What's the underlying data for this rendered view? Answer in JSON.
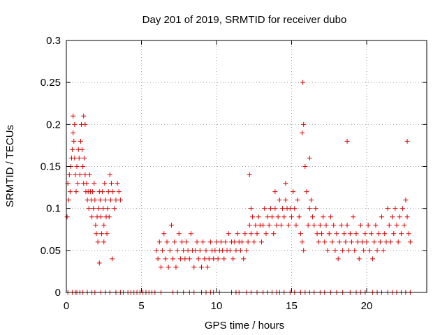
{
  "chart_data": {
    "type": "scatter",
    "title": "Day 201 of 2019, SRMTID for receiver dubo",
    "xlabel": "GPS time / hours",
    "ylabel": "SRMTID / TECUs",
    "xlim": [
      0,
      24
    ],
    "ylim": [
      0,
      0.3
    ],
    "grid": true,
    "x_ticks": [
      0,
      5,
      10,
      15,
      20
    ],
    "x_tick_labels": [
      "0",
      "5",
      "10",
      "15",
      "20"
    ],
    "y_ticks": [
      0,
      0.05,
      0.1,
      0.15,
      0.2,
      0.25,
      0.3
    ],
    "y_tick_labels": [
      "0",
      "0.05",
      "0.1",
      "0.15",
      "0.2",
      "0.25",
      "0.3"
    ],
    "marker": "+",
    "color": "#e00000",
    "series": [
      {
        "name": "SRMTID",
        "description": "approximate scatter of the plotted values, sampled from the figure",
        "x": [
          0.05,
          0.1,
          0.15,
          0.2,
          0.25,
          0.3,
          0.35,
          0.4,
          0.45,
          0.5,
          0.55,
          0.6,
          0.65,
          0.7,
          0.75,
          0.8,
          0.85,
          0.9,
          0.95,
          1.0,
          1.05,
          1.1,
          1.15,
          1.2,
          1.25,
          1.3,
          1.35,
          1.4,
          1.45,
          1.5,
          1.55,
          1.6,
          1.65,
          1.7,
          1.75,
          1.8,
          1.85,
          1.9,
          1.95,
          2.0,
          2.05,
          2.1,
          2.15,
          2.2,
          2.25,
          2.3,
          2.35,
          2.4,
          2.45,
          2.5,
          2.55,
          2.6,
          2.65,
          2.7,
          2.75,
          2.8,
          2.85,
          2.9,
          2.95,
          3.0,
          3.1,
          3.2,
          3.3,
          3.4,
          3.5,
          3.6,
          0.45,
          0.55,
          1.15,
          1.25,
          2.5,
          3.05,
          2.2,
          6.0,
          6.1,
          6.2,
          6.3,
          6.4,
          6.5,
          6.6,
          6.7,
          6.8,
          6.9,
          7.0,
          7.1,
          7.2,
          7.3,
          7.4,
          7.5,
          7.6,
          7.7,
          7.8,
          7.9,
          8.0,
          8.1,
          8.2,
          8.3,
          8.4,
          8.5,
          8.6,
          8.7,
          8.8,
          8.9,
          9.0,
          9.1,
          9.2,
          9.3,
          9.4,
          9.5,
          9.6,
          9.7,
          9.8,
          9.9,
          10.0,
          10.1,
          10.2,
          10.3,
          10.4,
          10.5,
          10.6,
          10.7,
          10.8,
          10.9,
          11.0,
          11.1,
          11.2,
          11.3,
          11.4,
          11.5,
          11.6,
          11.7,
          11.8,
          11.9,
          12.0,
          12.1,
          12.2,
          12.3,
          12.4,
          12.5,
          12.6,
          12.7,
          12.8,
          12.9,
          13.0,
          13.1,
          13.2,
          13.3,
          13.4,
          13.5,
          13.6,
          13.7,
          13.8,
          13.9,
          14.0,
          14.1,
          14.2,
          14.3,
          14.4,
          14.5,
          14.6,
          14.7,
          14.8,
          14.9,
          15.0,
          15.1,
          15.2,
          15.3,
          15.4,
          15.5,
          15.6,
          15.7,
          15.8,
          15.9,
          16.0,
          16.1,
          16.2,
          16.3,
          16.4,
          16.5,
          16.6,
          16.7,
          16.8,
          16.9,
          17.0,
          17.1,
          17.2,
          17.3,
          17.4,
          17.5,
          17.6,
          17.7,
          17.8,
          17.9,
          18.0,
          18.1,
          18.2,
          18.3,
          18.4,
          18.5,
          18.6,
          18.7,
          18.8,
          18.9,
          19.0,
          19.1,
          19.2,
          19.3,
          19.4,
          19.5,
          19.6,
          19.7,
          19.8,
          19.9,
          20.0,
          20.1,
          20.2,
          20.3,
          20.4,
          20.5,
          20.6,
          20.7,
          20.8,
          20.9,
          21.0,
          21.1,
          21.2,
          21.3,
          21.4,
          21.5,
          21.6,
          21.7,
          21.8,
          21.9,
          22.0,
          22.1,
          22.2,
          22.3,
          22.4,
          22.5,
          22.6,
          22.7,
          22.8,
          22.9,
          15.75,
          15.7,
          15.8,
          16.2,
          18.7,
          22.7,
          14.6,
          13.9,
          12.2,
          12.3
        ],
        "y": [
          0.09,
          0.13,
          0.11,
          0.14,
          0.12,
          0.15,
          0.16,
          0.17,
          0.19,
          0.18,
          0.16,
          0.14,
          0.12,
          0.15,
          0.13,
          0.17,
          0.16,
          0.14,
          0.18,
          0.2,
          0.17,
          0.15,
          0.13,
          0.16,
          0.14,
          0.12,
          0.13,
          0.11,
          0.12,
          0.1,
          0.14,
          0.12,
          0.11,
          0.09,
          0.12,
          0.1,
          0.13,
          0.11,
          0.08,
          0.07,
          0.09,
          0.06,
          0.1,
          0.12,
          0.11,
          0.09,
          0.07,
          0.12,
          0.1,
          0.08,
          0.13,
          0.11,
          0.09,
          0.07,
          0.1,
          0.12,
          0.09,
          0.14,
          0.11,
          0.13,
          0.12,
          0.1,
          0.11,
          0.13,
          0.12,
          0.11,
          0.21,
          0.2,
          0.21,
          0.2,
          0.06,
          0.04,
          0.035,
          0.05,
          0.04,
          0.06,
          0.03,
          0.05,
          0.07,
          0.04,
          0.06,
          0.03,
          0.05,
          0.08,
          0.04,
          0.06,
          0.03,
          0.05,
          0.07,
          0.04,
          0.06,
          0.05,
          0.04,
          0.06,
          0.05,
          0.04,
          0.07,
          0.05,
          0.03,
          0.05,
          0.06,
          0.04,
          0.05,
          0.03,
          0.06,
          0.04,
          0.05,
          0.03,
          0.04,
          0.06,
          0.05,
          0.04,
          0.05,
          0.06,
          0.04,
          0.05,
          0.06,
          0.05,
          0.04,
          0.06,
          0.05,
          0.07,
          0.05,
          0.06,
          0.04,
          0.06,
          0.05,
          0.07,
          0.06,
          0.05,
          0.06,
          0.04,
          0.07,
          0.05,
          0.06,
          0.08,
          0.07,
          0.09,
          0.06,
          0.08,
          0.07,
          0.09,
          0.08,
          0.06,
          0.08,
          0.1,
          0.07,
          0.09,
          0.08,
          0.1,
          0.09,
          0.07,
          0.1,
          0.08,
          0.09,
          0.11,
          0.08,
          0.1,
          0.09,
          0.11,
          0.1,
          0.08,
          0.1,
          0.09,
          0.12,
          0.1,
          0.08,
          0.11,
          0.09,
          0.07,
          0.06,
          0.05,
          0.15,
          0.12,
          0.08,
          0.1,
          0.11,
          0.09,
          0.08,
          0.1,
          0.07,
          0.06,
          0.08,
          0.07,
          0.09,
          0.06,
          0.08,
          0.05,
          0.07,
          0.09,
          0.06,
          0.08,
          0.05,
          0.07,
          0.04,
          0.06,
          0.08,
          0.05,
          0.07,
          0.06,
          0.08,
          0.05,
          0.07,
          0.06,
          0.09,
          0.05,
          0.07,
          0.06,
          0.04,
          0.08,
          0.06,
          0.05,
          0.07,
          0.06,
          0.08,
          0.05,
          0.07,
          0.04,
          0.06,
          0.08,
          0.05,
          0.07,
          0.06,
          0.09,
          0.05,
          0.07,
          0.06,
          0.1,
          0.08,
          0.06,
          0.09,
          0.07,
          0.1,
          0.08,
          0.06,
          0.09,
          0.07,
          0.1,
          0.08,
          0.11,
          0.09,
          0.07,
          0.06,
          0.25,
          0.19,
          0.2,
          0.16,
          0.18,
          0.18,
          0.13,
          0.12,
          0.14,
          0.1
        ],
        "zero_level_x": [
          0.1,
          0.4,
          0.6,
          0.7,
          0.9,
          1.1,
          1.4,
          1.7,
          1.9,
          2.3,
          2.6,
          2.9,
          3.3,
          3.6,
          3.8,
          4.1,
          4.3,
          4.5,
          4.7,
          4.9,
          5.1,
          5.3,
          5.5,
          5.7,
          5.9,
          6.3,
          7.1,
          7.4,
          7.8,
          8.2,
          8.5,
          9.0,
          9.3,
          9.6,
          9.8,
          10.2,
          11.0,
          11.3,
          11.5,
          12.0,
          12.3,
          12.7,
          13.1,
          13.4,
          13.7,
          14.0,
          14.2,
          14.5,
          14.9,
          15.2,
          15.6,
          15.9,
          16.2,
          16.5,
          16.9,
          17.2,
          17.6,
          18.0,
          18.4,
          18.9,
          19.3,
          19.6,
          19.9,
          20.4,
          20.7,
          21.0,
          21.4,
          21.7,
          22.0,
          22.3,
          22.6,
          22.9
        ]
      }
    ]
  }
}
